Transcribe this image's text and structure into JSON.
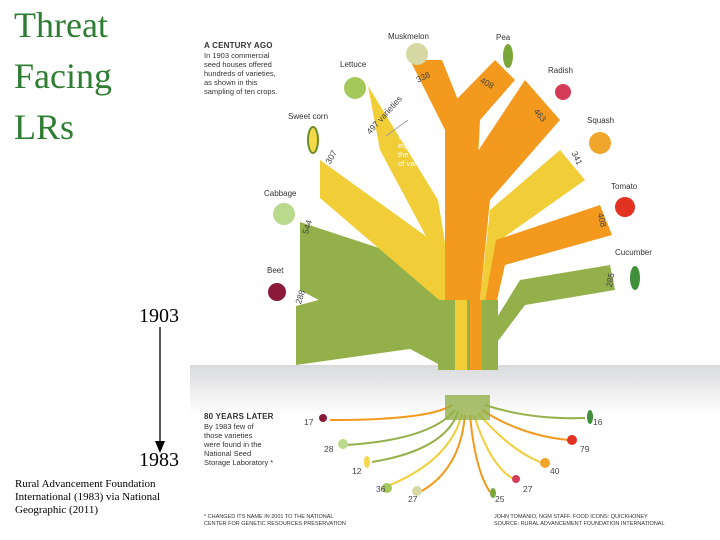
{
  "slide": {
    "title_lines": [
      "Threat",
      "Facing",
      "LRs"
    ],
    "year_start": "1903",
    "year_end": "1983",
    "credit_lines": [
      "Rural Advancement Foundation",
      "International (1983) via National",
      "Geographic (2011)"
    ]
  },
  "graphic": {
    "top_header": "A CENTURY AGO",
    "top_body": [
      "In 1903 commercial",
      "seed houses offered",
      "hundreds of varieties,",
      "as shown in this",
      "sampling of ten crops."
    ],
    "width_note": [
      "Width",
      "equals",
      "the number",
      "of varieties"
    ],
    "bottom_header": "80 YEARS LATER",
    "bottom_body": [
      "By 1983 few of",
      "those varieties",
      "were found in the",
      "National Seed",
      "Storage Laboratory *"
    ],
    "footnote_left": [
      "* CHANGED ITS NAME IN 2001 TO THE NATIONAL",
      "CENTER FOR GENETIC RESOURCES PRESERVATION"
    ],
    "footnote_right": [
      "JOHN TOMANIO, NGM STAFF. FOOD ICONS: QUICKHONEY",
      "SOURCE: RURAL ADVANCEMENT FOUNDATION INTERNATIONAL"
    ],
    "crops": [
      {
        "name": "Beet",
        "v1903": "288",
        "v1983": "17"
      },
      {
        "name": "Cabbage",
        "v1903": "544",
        "v1983": "28"
      },
      {
        "name": "Sweet corn",
        "v1903": "307",
        "v1983": "12"
      },
      {
        "name": "Lettuce",
        "v1903": "497 varieties",
        "v1983": "36"
      },
      {
        "name": "Muskmelon",
        "v1903": "338",
        "v1983": "27"
      },
      {
        "name": "Pea",
        "v1903": "408",
        "v1983": "25"
      },
      {
        "name": "Radish",
        "v1903": "463",
        "v1983": "27"
      },
      {
        "name": "Squash",
        "v1903": "341",
        "v1983": "40"
      },
      {
        "name": "Tomato",
        "v1903": "408",
        "v1983": "79"
      },
      {
        "name": "Cucumber",
        "v1903": "285",
        "v1983": "16"
      }
    ],
    "colors": {
      "green": "#94b04a",
      "yellow": "#f1cd37",
      "orange": "#f39a1e",
      "title": "#2e7d32"
    }
  }
}
